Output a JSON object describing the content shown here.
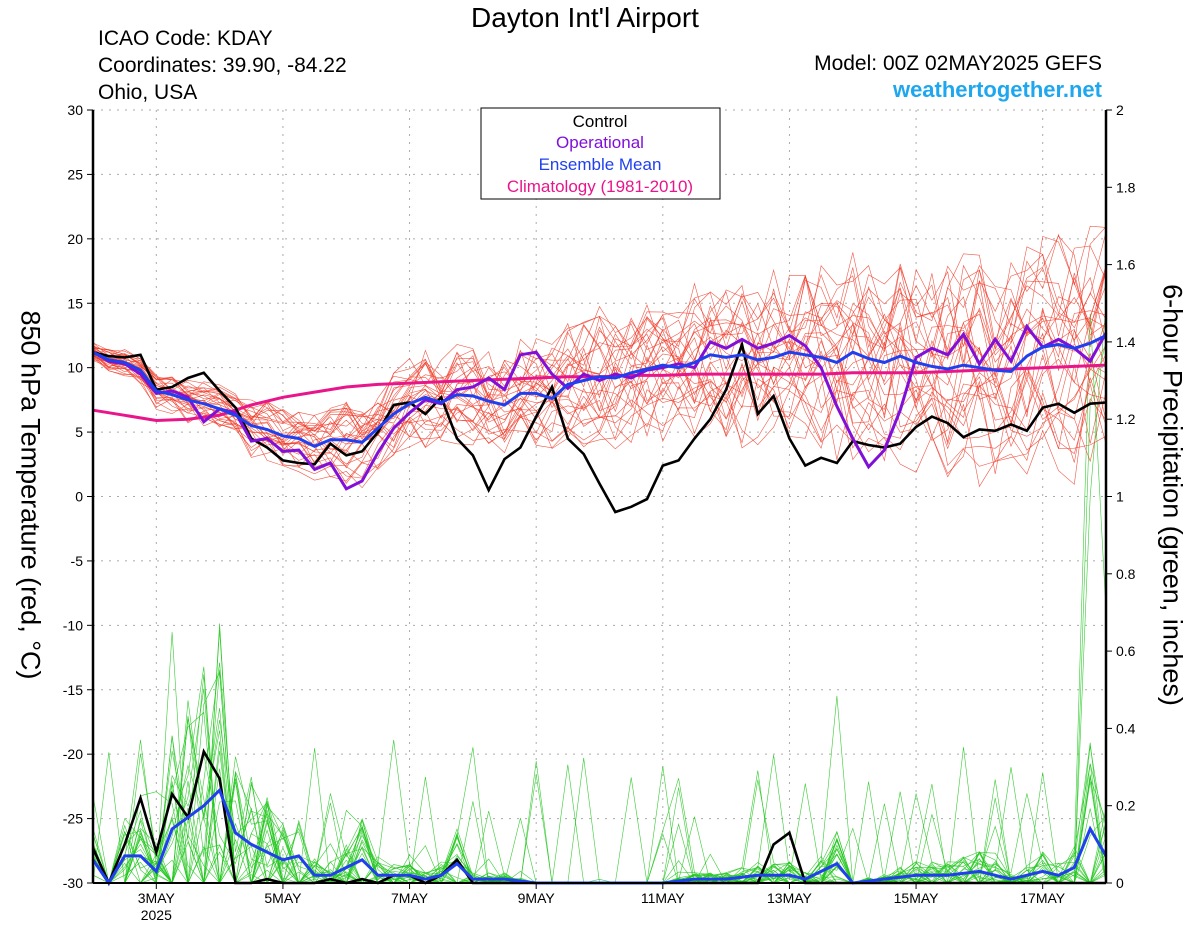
{
  "header": {
    "title": "Dayton Int'l Airport",
    "icao": "ICAO Code: KDAY",
    "coords": "Coordinates: 39.90, -84.22",
    "region": "Ohio, USA",
    "model": "Model: 00Z 02MAY2025 GEFS",
    "site": "weathertogether.net"
  },
  "colors": {
    "control": "#000000",
    "operational": "#8010d8",
    "ensemble_mean": "#2040ee",
    "climatology": "#e8168a",
    "temp_members": "#f03a28",
    "precip_members": "#22c71e",
    "grid": "#aaaaaa"
  },
  "chart_data": {
    "type": "line",
    "title": "Dayton Int'l Airport",
    "ylabel": "850 hPa Temperature (red, °C)",
    "ylabel2": "6-hour Precipitation (green, inches)",
    "xlabel": "",
    "xlim": [
      0,
      16
    ],
    "ylim": [
      -30,
      30
    ],
    "ylim2": [
      0,
      2
    ],
    "yticks": [
      "30",
      "25",
      "20",
      "15",
      "10",
      "5",
      "0",
      "-5",
      "-10",
      "-15",
      "-20",
      "-25",
      "-30"
    ],
    "yticks2": [
      "2",
      "1.8",
      "1.6",
      "1.4",
      "1.2",
      "1",
      "0.8",
      "0.6",
      "0.4",
      "0.2",
      "0"
    ],
    "xticks": [
      {
        "x": 1,
        "label": "3MAY",
        "sub": "2025"
      },
      {
        "x": 3,
        "label": "5MAY",
        "sub": ""
      },
      {
        "x": 5,
        "label": "7MAY",
        "sub": ""
      },
      {
        "x": 7,
        "label": "9MAY",
        "sub": ""
      },
      {
        "x": 9,
        "label": "11MAY",
        "sub": ""
      },
      {
        "x": 11,
        "label": "13MAY",
        "sub": ""
      },
      {
        "x": 13,
        "label": "15MAY",
        "sub": ""
      },
      {
        "x": 15,
        "label": "17MAY",
        "sub": ""
      }
    ],
    "legend": {
      "position": "top-center",
      "entries": [
        {
          "name": "Control",
          "color": "#000000"
        },
        {
          "name": "Operational",
          "color": "#8010d8"
        },
        {
          "name": "Ensemble Mean",
          "color": "#2040ee"
        },
        {
          "name": "Climatology (1981-2010)",
          "color": "#e8168a"
        }
      ]
    },
    "temperature": {
      "control": [
        [
          0,
          11.2
        ],
        [
          0.25,
          10.9
        ],
        [
          0.5,
          10.8
        ],
        [
          0.75,
          11
        ],
        [
          1,
          8.3
        ],
        [
          1.25,
          8.5
        ],
        [
          1.5,
          9.2
        ],
        [
          1.75,
          9.6
        ],
        [
          2,
          8.2
        ],
        [
          2.25,
          6.9
        ],
        [
          2.5,
          4.5
        ],
        [
          2.75,
          3.8
        ],
        [
          3,
          2.8
        ],
        [
          3.25,
          2.6
        ],
        [
          3.5,
          2.5
        ],
        [
          3.75,
          4.1
        ],
        [
          4,
          3.2
        ],
        [
          4.25,
          3.5
        ],
        [
          4.5,
          5
        ],
        [
          4.75,
          7.1
        ],
        [
          5,
          7.3
        ],
        [
          5.25,
          6.4
        ],
        [
          5.5,
          7.7
        ],
        [
          5.75,
          4.5
        ],
        [
          6,
          3.2
        ],
        [
          6.25,
          0.5
        ],
        [
          6.5,
          2.9
        ],
        [
          6.75,
          3.8
        ],
        [
          7,
          6.2
        ],
        [
          7.25,
          8.5
        ],
        [
          7.5,
          4.5
        ],
        [
          7.75,
          3.3
        ],
        [
          8,
          1
        ],
        [
          8.25,
          -1.2
        ],
        [
          8.5,
          -0.8
        ],
        [
          8.75,
          -0.2
        ],
        [
          9,
          2.4
        ],
        [
          9.25,
          2.8
        ],
        [
          9.5,
          4.5
        ],
        [
          9.75,
          6
        ],
        [
          10,
          8.3
        ],
        [
          10.25,
          11.8
        ],
        [
          10.5,
          6.4
        ],
        [
          10.75,
          7.8
        ],
        [
          11,
          4.5
        ],
        [
          11.25,
          2.4
        ],
        [
          11.5,
          3
        ],
        [
          11.75,
          2.6
        ],
        [
          12,
          4.3
        ],
        [
          12.25,
          4
        ],
        [
          12.5,
          3.8
        ],
        [
          12.75,
          4.1
        ],
        [
          13,
          5.4
        ],
        [
          13.25,
          6.2
        ],
        [
          13.5,
          5.7
        ],
        [
          13.75,
          4.6
        ],
        [
          14,
          5.2
        ],
        [
          14.25,
          5.1
        ],
        [
          14.5,
          5.6
        ],
        [
          14.75,
          5.1
        ],
        [
          15,
          6.9
        ],
        [
          15.25,
          7.2
        ],
        [
          15.5,
          6.5
        ],
        [
          15.75,
          7.2
        ],
        [
          16,
          7.3
        ]
      ],
      "operational": [
        [
          0,
          11.2
        ],
        [
          0.25,
          10.5
        ],
        [
          0.5,
          10.3
        ],
        [
          0.75,
          9.5
        ],
        [
          1,
          8
        ],
        [
          1.25,
          8.2
        ],
        [
          1.5,
          7.7
        ],
        [
          1.75,
          5.8
        ],
        [
          2,
          6.8
        ],
        [
          2.25,
          6.5
        ],
        [
          2.5,
          4.3
        ],
        [
          2.75,
          4.5
        ],
        [
          3,
          3.5
        ],
        [
          3.25,
          3.6
        ],
        [
          3.5,
          2.1
        ],
        [
          3.75,
          2.6
        ],
        [
          4,
          0.6
        ],
        [
          4.25,
          1.2
        ],
        [
          4.5,
          3.4
        ],
        [
          4.75,
          5.3
        ],
        [
          5,
          6.5
        ],
        [
          5.25,
          7.5
        ],
        [
          5.5,
          7.2
        ],
        [
          5.75,
          8.3
        ],
        [
          6,
          8.5
        ],
        [
          6.25,
          9.2
        ],
        [
          6.5,
          8.3
        ],
        [
          6.75,
          11
        ],
        [
          7,
          11.2
        ],
        [
          7.25,
          9.5
        ],
        [
          7.5,
          8.4
        ],
        [
          7.75,
          9.5
        ],
        [
          8,
          9
        ],
        [
          8.25,
          9.5
        ],
        [
          8.5,
          9.2
        ],
        [
          8.75,
          9.8
        ],
        [
          9,
          10
        ],
        [
          9.25,
          10.3
        ],
        [
          9.5,
          10
        ],
        [
          9.75,
          12
        ],
        [
          10,
          11.5
        ],
        [
          10.25,
          12.2
        ],
        [
          10.5,
          11.5
        ],
        [
          10.75,
          11.9
        ],
        [
          11,
          12.5
        ],
        [
          11.25,
          11.7
        ],
        [
          11.5,
          10
        ],
        [
          11.75,
          7
        ],
        [
          12,
          4.5
        ],
        [
          12.25,
          2.3
        ],
        [
          12.5,
          3.6
        ],
        [
          12.75,
          6.7
        ],
        [
          13,
          10.8
        ],
        [
          13.25,
          11.5
        ],
        [
          13.5,
          11
        ],
        [
          13.75,
          12.6
        ],
        [
          14,
          10.3
        ],
        [
          14.25,
          12.2
        ],
        [
          14.5,
          10.5
        ],
        [
          14.75,
          13.2
        ],
        [
          15,
          11.6
        ],
        [
          15.25,
          12.2
        ],
        [
          15.5,
          11.5
        ],
        [
          15.75,
          10.5
        ],
        [
          16,
          12.7
        ]
      ],
      "ensemble_mean": [
        [
          0,
          11.2
        ],
        [
          0.25,
          10.6
        ],
        [
          0.5,
          10.4
        ],
        [
          0.75,
          9.8
        ],
        [
          1,
          8.2
        ],
        [
          1.25,
          7.9
        ],
        [
          1.5,
          7.5
        ],
        [
          1.75,
          7.2
        ],
        [
          2,
          6.8
        ],
        [
          2.25,
          6.3
        ],
        [
          2.5,
          5.5
        ],
        [
          2.75,
          5.2
        ],
        [
          3,
          4.7
        ],
        [
          3.25,
          4.5
        ],
        [
          3.5,
          3.9
        ],
        [
          3.75,
          4.4
        ],
        [
          4,
          4.4
        ],
        [
          4.25,
          4.2
        ],
        [
          4.5,
          5.3
        ],
        [
          4.75,
          6.4
        ],
        [
          5,
          7.2
        ],
        [
          5.25,
          7.7
        ],
        [
          5.5,
          7.3
        ],
        [
          5.75,
          7.9
        ],
        [
          6,
          7.8
        ],
        [
          6.25,
          7.4
        ],
        [
          6.5,
          7.1
        ],
        [
          6.75,
          8
        ],
        [
          7,
          8
        ],
        [
          7.25,
          7.6
        ],
        [
          7.5,
          8.7
        ],
        [
          7.75,
          9
        ],
        [
          8,
          9.3
        ],
        [
          8.25,
          9.2
        ],
        [
          8.5,
          9.6
        ],
        [
          8.75,
          9.9
        ],
        [
          9,
          10.2
        ],
        [
          9.25,
          10
        ],
        [
          9.5,
          10.4
        ],
        [
          9.75,
          11
        ],
        [
          10,
          10.8
        ],
        [
          10.25,
          11
        ],
        [
          10.5,
          10.6
        ],
        [
          10.75,
          10.8
        ],
        [
          11,
          11.2
        ],
        [
          11.25,
          11
        ],
        [
          11.5,
          10.8
        ],
        [
          11.75,
          10.4
        ],
        [
          12,
          11.2
        ],
        [
          12.25,
          10.7
        ],
        [
          12.5,
          10.4
        ],
        [
          12.75,
          10.9
        ],
        [
          13,
          10.4
        ],
        [
          13.25,
          10.1
        ],
        [
          13.5,
          9.9
        ],
        [
          13.75,
          10.2
        ],
        [
          14,
          10
        ],
        [
          14.25,
          9.8
        ],
        [
          14.5,
          9.7
        ],
        [
          14.75,
          10.9
        ],
        [
          15,
          11.6
        ],
        [
          15.25,
          11.8
        ],
        [
          15.5,
          11.5
        ],
        [
          15.75,
          11.9
        ],
        [
          16,
          12.5
        ]
      ],
      "climatology": [
        [
          0,
          6.7
        ],
        [
          0.5,
          6.3
        ],
        [
          1,
          5.9
        ],
        [
          1.5,
          6
        ],
        [
          2,
          6.3
        ],
        [
          2.5,
          7.1
        ],
        [
          3,
          7.7
        ],
        [
          3.5,
          8.1
        ],
        [
          4,
          8.5
        ],
        [
          4.5,
          8.7
        ],
        [
          5,
          8.8
        ],
        [
          5.5,
          8.9
        ],
        [
          6,
          9
        ],
        [
          6.5,
          9.1
        ],
        [
          7,
          9.2
        ],
        [
          7.5,
          9.3
        ],
        [
          8,
          9.3
        ],
        [
          8.5,
          9.4
        ],
        [
          9,
          9.4
        ],
        [
          9.5,
          9.5
        ],
        [
          10,
          9.5
        ],
        [
          10.5,
          9.5
        ],
        [
          11,
          9.5
        ],
        [
          11.5,
          9.5
        ],
        [
          12,
          9.6
        ],
        [
          12.5,
          9.6
        ],
        [
          13,
          9.6
        ],
        [
          13.5,
          9.7
        ],
        [
          14,
          9.8
        ],
        [
          14.5,
          9.9
        ],
        [
          15,
          10
        ],
        [
          15.5,
          10.1
        ],
        [
          16,
          10.2
        ]
      ]
    },
    "precipitation": {
      "control": [
        [
          0,
          0.09
        ],
        [
          0.25,
          0
        ],
        [
          0.5,
          0.1
        ],
        [
          0.75,
          0.22
        ],
        [
          1,
          0.08
        ],
        [
          1.25,
          0.23
        ],
        [
          1.5,
          0.17
        ],
        [
          1.75,
          0.34
        ],
        [
          2,
          0.27
        ],
        [
          2.25,
          0
        ],
        [
          2.5,
          0
        ],
        [
          2.75,
          0.01
        ],
        [
          3,
          0
        ],
        [
          3.25,
          0
        ],
        [
          3.5,
          0
        ],
        [
          3.75,
          0.01
        ],
        [
          4,
          0
        ],
        [
          4.25,
          0.01
        ],
        [
          4.5,
          0
        ],
        [
          4.75,
          0.02
        ],
        [
          5,
          0.02
        ],
        [
          5.25,
          0
        ],
        [
          5.5,
          0.02
        ],
        [
          5.75,
          0.06
        ],
        [
          6,
          0
        ],
        [
          6.5,
          0
        ],
        [
          7,
          0
        ],
        [
          7.5,
          0
        ],
        [
          8,
          0
        ],
        [
          8.5,
          0
        ],
        [
          9,
          0
        ],
        [
          9.5,
          0
        ],
        [
          10,
          0
        ],
        [
          10.25,
          0
        ],
        [
          10.5,
          0
        ],
        [
          10.75,
          0.1
        ],
        [
          11,
          0.13
        ],
        [
          11.25,
          0
        ],
        [
          12,
          0
        ],
        [
          13,
          0
        ],
        [
          14,
          0
        ],
        [
          15,
          0
        ],
        [
          16,
          0
        ]
      ],
      "ensemble_mean": [
        [
          0,
          0.06
        ],
        [
          0.25,
          0
        ],
        [
          0.5,
          0.07
        ],
        [
          0.75,
          0.07
        ],
        [
          1,
          0.03
        ],
        [
          1.25,
          0.14
        ],
        [
          1.5,
          0.17
        ],
        [
          1.75,
          0.2
        ],
        [
          2,
          0.24
        ],
        [
          2.25,
          0.13
        ],
        [
          2.5,
          0.1
        ],
        [
          2.75,
          0.08
        ],
        [
          3,
          0.06
        ],
        [
          3.25,
          0.07
        ],
        [
          3.5,
          0.02
        ],
        [
          3.75,
          0.02
        ],
        [
          4,
          0.04
        ],
        [
          4.25,
          0.06
        ],
        [
          4.5,
          0.02
        ],
        [
          4.75,
          0.02
        ],
        [
          5,
          0.02
        ],
        [
          5.25,
          0.01
        ],
        [
          5.5,
          0.02
        ],
        [
          5.75,
          0.05
        ],
        [
          6,
          0.01
        ],
        [
          6.5,
          0.01
        ],
        [
          7,
          0
        ],
        [
          8,
          0
        ],
        [
          9,
          0
        ],
        [
          9.5,
          0.01
        ],
        [
          10,
          0.01
        ],
        [
          10.5,
          0.02
        ],
        [
          11,
          0.02
        ],
        [
          11.25,
          0.01
        ],
        [
          11.5,
          0.03
        ],
        [
          11.75,
          0.05
        ],
        [
          12,
          0
        ],
        [
          12.5,
          0.01
        ],
        [
          13,
          0.02
        ],
        [
          13.5,
          0.02
        ],
        [
          14,
          0.03
        ],
        [
          14.25,
          0.02
        ],
        [
          14.5,
          0.01
        ],
        [
          15,
          0.03
        ],
        [
          15.25,
          0.02
        ],
        [
          15.5,
          0.04
        ],
        [
          15.75,
          0.14
        ],
        [
          16,
          0.07
        ]
      ]
    },
    "member_count": 30
  }
}
